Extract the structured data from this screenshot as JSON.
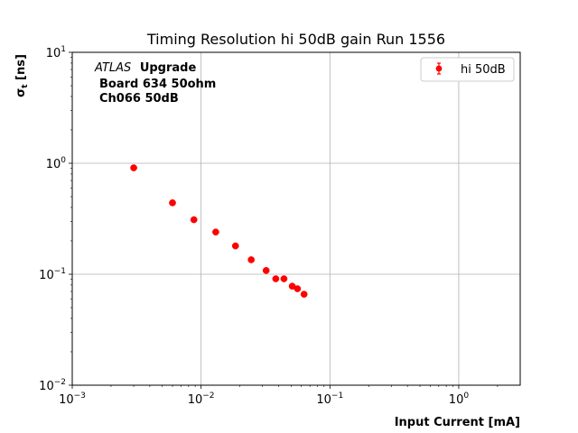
{
  "chart_data": {
    "type": "scatter",
    "title": "Timing Resolution hi 50dB gain Run 1556",
    "xlabel": "Input Current [mA]",
    "ylabel": "σ_t [ns]",
    "xscale": "log",
    "yscale": "log",
    "xlim": [
      0.001,
      3
    ],
    "ylim": [
      0.01,
      10
    ],
    "grid": true,
    "legend_position": "top-right",
    "x_ticks": [
      {
        "value": 0.001,
        "label": "10",
        "exp": "−3"
      },
      {
        "value": 0.01,
        "label": "10",
        "exp": "−2"
      },
      {
        "value": 0.1,
        "label": "10",
        "exp": "−1"
      },
      {
        "value": 1,
        "label": "10",
        "exp": "0"
      }
    ],
    "y_ticks": [
      {
        "value": 0.01,
        "label": "10",
        "exp": "−2"
      },
      {
        "value": 0.1,
        "label": "10",
        "exp": "−1"
      },
      {
        "value": 1,
        "label": "10",
        "exp": "0"
      },
      {
        "value": 10,
        "label": "10",
        "exp": "1"
      }
    ],
    "annotation": {
      "italic": "ATLAS",
      "bold": "Upgrade",
      "lines": [
        "Board 634 50ohm",
        "Ch066 50dB"
      ]
    },
    "series": [
      {
        "name": "hi 50dB",
        "color": "#ff0000",
        "marker": "circle",
        "x": [
          0.003,
          0.006,
          0.0088,
          0.013,
          0.0185,
          0.0245,
          0.032,
          0.038,
          0.044,
          0.051,
          0.056,
          0.063
        ],
        "y": [
          0.91,
          0.44,
          0.31,
          0.24,
          0.18,
          0.135,
          0.108,
          0.091,
          0.091,
          0.078,
          0.074,
          0.066
        ]
      }
    ]
  }
}
